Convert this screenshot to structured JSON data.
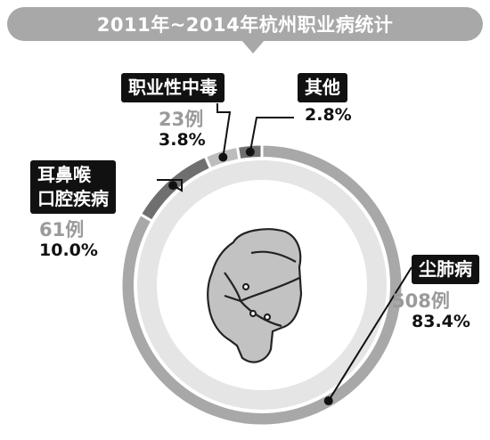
{
  "title": "2011年~2014年杭州职业病统计",
  "colors": {
    "main": "#a8a8a8",
    "dark": "#6f6f6f",
    "mid": "#bdbdbd",
    "inner_ring": "#e5e5e5"
  },
  "icon": "face-with-mask-icon",
  "chart_data": {
    "type": "pie",
    "title": "2011年~2014年杭州职业病统计",
    "categories": [
      "尘肺病",
      "耳鼻喉口腔疾病",
      "职业性中毒",
      "其他"
    ],
    "values": [
      83.4,
      10.0,
      3.8,
      2.8
    ],
    "counts": [
      508,
      61,
      23,
      null
    ],
    "series": [
      {
        "name": "尘肺病",
        "count_label": "508例",
        "percent_label": "83.4%"
      },
      {
        "name": "耳鼻喉口腔疾病",
        "label_lines": [
          "耳鼻喉",
          "口腔疾病"
        ],
        "count_label": "61例",
        "percent_label": "10.0%"
      },
      {
        "name": "职业性中毒",
        "count_label": "23例",
        "percent_label": "3.8%"
      },
      {
        "name": "其他",
        "count_label": "",
        "percent_label": "2.8%"
      }
    ]
  }
}
